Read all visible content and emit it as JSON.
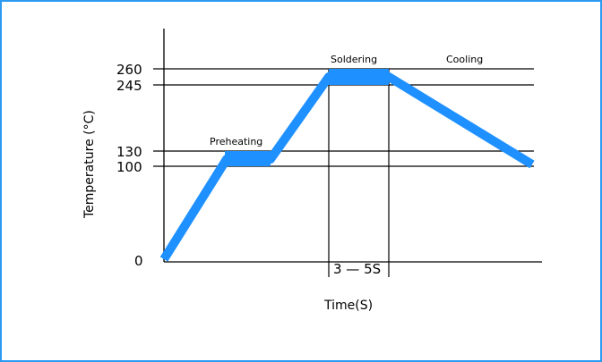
{
  "y_axis": {
    "title": "Temperature (°C)",
    "ticks": [
      "260",
      "245",
      "130",
      "100",
      "0"
    ]
  },
  "x_axis": {
    "title": "Time(S)",
    "duration_label": "3 — 5S"
  },
  "phases": {
    "preheating": "Preheating",
    "soldering": "Soldering",
    "cooling": "Cooling"
  },
  "colors": {
    "frame": "#2b9af3",
    "profile": "#1e90ff",
    "lines": "#000000"
  }
}
